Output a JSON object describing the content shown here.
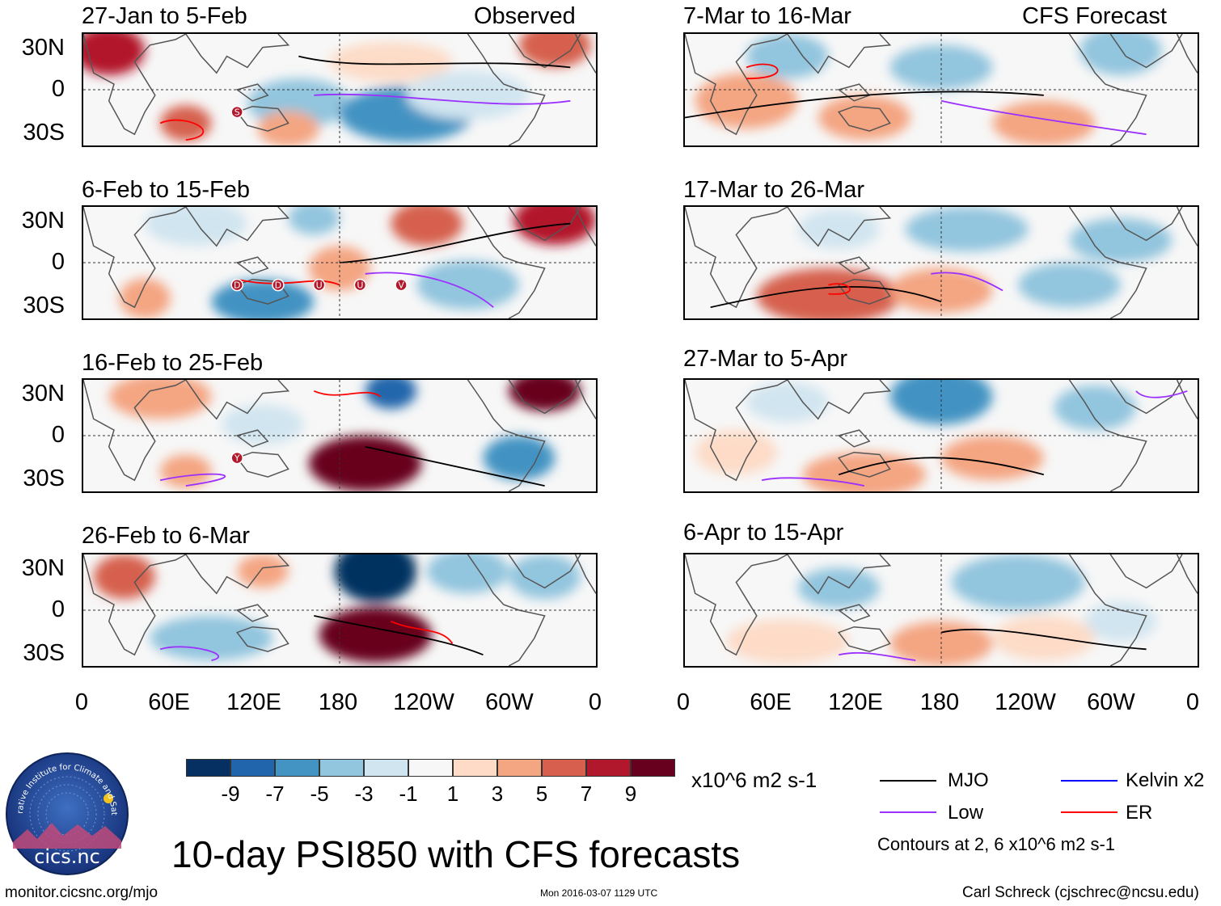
{
  "panels": [
    {
      "title": "27-Jan to 5-Feb",
      "tag": "Observed",
      "letters": [
        "S"
      ]
    },
    {
      "title": "6-Feb to 15-Feb",
      "tag": "",
      "letters": [
        "D",
        "D",
        "U",
        "U",
        "V"
      ]
    },
    {
      "title": "16-Feb to 25-Feb",
      "tag": "",
      "letters": [
        "Y"
      ]
    },
    {
      "title": "26-Feb to 6-Mar",
      "tag": "",
      "letters": []
    },
    {
      "title": "7-Mar to 16-Mar",
      "tag": "CFS Forecast",
      "letters": []
    },
    {
      "title": "17-Mar to 26-Mar",
      "tag": "",
      "letters": []
    },
    {
      "title": "27-Mar to 5-Apr",
      "tag": "",
      "letters": []
    },
    {
      "title": "6-Apr to 15-Apr",
      "tag": "",
      "letters": []
    }
  ],
  "yaxis": {
    "labels": [
      "30N",
      "0",
      "30S"
    ]
  },
  "xaxis": {
    "labels": [
      "0",
      "60E",
      "120E",
      "180",
      "120W",
      "60W",
      "0"
    ]
  },
  "colorbar": {
    "labels": [
      "-9",
      "-7",
      "-5",
      "-3",
      "-1",
      "1",
      "3",
      "5",
      "7",
      "9"
    ],
    "colors": [
      "#053061",
      "#2166ac",
      "#4393c3",
      "#92c5de",
      "#d1e5f0",
      "#f7f7f7",
      "#fddbc7",
      "#f4a582",
      "#d6604d",
      "#b2182b",
      "#67001f"
    ],
    "units": "x10^6 m2 s-1"
  },
  "legend": {
    "items": [
      {
        "label": "MJO",
        "color": "#000000"
      },
      {
        "label": "Kelvin x2",
        "color": "#0000ff"
      },
      {
        "label": "Low",
        "color": "#9b30ff"
      },
      {
        "label": "ER",
        "color": "#ff0000"
      }
    ],
    "note": "Contours at 2, 6 x10^6 m2 s-1"
  },
  "logo": {
    "name": "cics.nc",
    "ring_text": "Cooperative Institute for Climate and Satellites"
  },
  "main_title": "10-day PSI850 with CFS forecasts",
  "footer": {
    "left": "monitor.cicsnc.org/mjo",
    "center": "Mon 2016-03-07 1129 UTC",
    "right": "Carl Schreck (cjschrec@ncsu.edu)"
  }
}
